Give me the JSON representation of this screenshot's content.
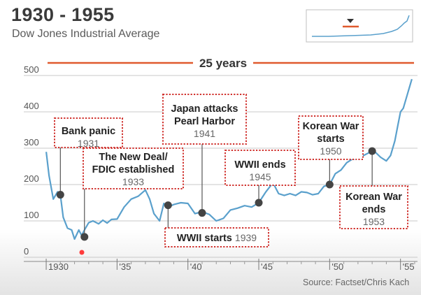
{
  "header": {
    "title": "1930 - 1955",
    "subtitle": "Dow Jones Industrial Average"
  },
  "span_label": "25 years",
  "source": "Source: Factset/Chris Kach",
  "colors": {
    "line": "#5aa0cc",
    "accent": "#e05a2e",
    "annotation_border": "#d0312d",
    "point": "#444444",
    "recording_dot": "#ff3b3b"
  },
  "chart_data": {
    "type": "line",
    "title": "1930 - 1955",
    "subtitle": "Dow Jones Industrial Average",
    "xlim": [
      1929.8,
      1956.2
    ],
    "ylim": [
      0,
      500
    ],
    "yticks": [
      {
        "value": 0,
        "label": "0"
      },
      {
        "value": 100,
        "label": "100"
      },
      {
        "value": 200,
        "label": "200"
      },
      {
        "value": 300,
        "label": "300"
      },
      {
        "value": 400,
        "label": "400"
      },
      {
        "value": 500,
        "label": "500"
      }
    ],
    "xticks": [
      {
        "value": 1930,
        "label": "1930"
      },
      {
        "value": 1935,
        "label": "'35"
      },
      {
        "value": 1940,
        "label": "'40"
      },
      {
        "value": 1945,
        "label": "'45"
      },
      {
        "value": 1950,
        "label": "'50"
      },
      {
        "value": 1955,
        "label": "'55"
      }
    ],
    "grid": true,
    "series": [
      {
        "x": [
          1930.0,
          1930.2,
          1930.5,
          1930.8,
          1931.0,
          1931.2,
          1931.5,
          1931.8,
          1932.0,
          1932.3,
          1932.5,
          1932.7,
          1933.0,
          1933.3,
          1933.7,
          1934.0,
          1934.3,
          1934.6,
          1935.0,
          1935.5,
          1936.0,
          1936.5,
          1937.0,
          1937.3,
          1937.6,
          1938.0,
          1938.3,
          1938.6,
          1939.0,
          1939.5,
          1940.0,
          1940.5,
          1941.0,
          1941.5,
          1942.0,
          1942.5,
          1943.0,
          1943.5,
          1944.0,
          1944.5,
          1945.0,
          1945.5,
          1946.0,
          1946.4,
          1946.8,
          1947.2,
          1947.6,
          1948.0,
          1948.4,
          1948.8,
          1949.2,
          1949.6,
          1950.0,
          1950.4,
          1950.8,
          1951.2,
          1951.6,
          1952.0,
          1952.4,
          1952.8,
          1953.2,
          1953.6,
          1954.0,
          1954.3,
          1954.6,
          1954.8,
          1955.0,
          1955.2,
          1955.5,
          1955.8
        ],
        "values": [
          290,
          225,
          160,
          180,
          172,
          110,
          80,
          75,
          50,
          75,
          60,
          75,
          95,
          100,
          92,
          102,
          94,
          104,
          105,
          138,
          160,
          168,
          185,
          160,
          120,
          100,
          148,
          138,
          145,
          150,
          148,
          120,
          125,
          118,
          100,
          107,
          130,
          135,
          142,
          138,
          150,
          180,
          205,
          175,
          170,
          175,
          170,
          180,
          178,
          172,
          175,
          195,
          200,
          230,
          240,
          260,
          270,
          272,
          280,
          288,
          290,
          275,
          265,
          280,
          320,
          360,
          400,
          410,
          450,
          490
        ]
      }
    ],
    "annotations": [
      {
        "label": "Bank panic",
        "year": "1931",
        "x": 1931.0,
        "y": 172
      },
      {
        "label": "The New Deal/ FDIC established",
        "year": "1933",
        "x": 1932.7,
        "y": 56
      },
      {
        "label": "Japan attacks Pearl Harbor",
        "year": "1941",
        "x": 1941.0,
        "y": 122
      },
      {
        "label": "WWII starts",
        "year": "1939",
        "x": 1938.6,
        "y": 143
      },
      {
        "label": "WWII ends",
        "year": "1945",
        "x": 1945.0,
        "y": 150
      },
      {
        "label": "Korean War starts",
        "year": "1950",
        "x": 1950.0,
        "y": 200
      },
      {
        "label": "Korean War ends",
        "year": "1953",
        "x": 1953.0,
        "y": 292
      }
    ]
  }
}
